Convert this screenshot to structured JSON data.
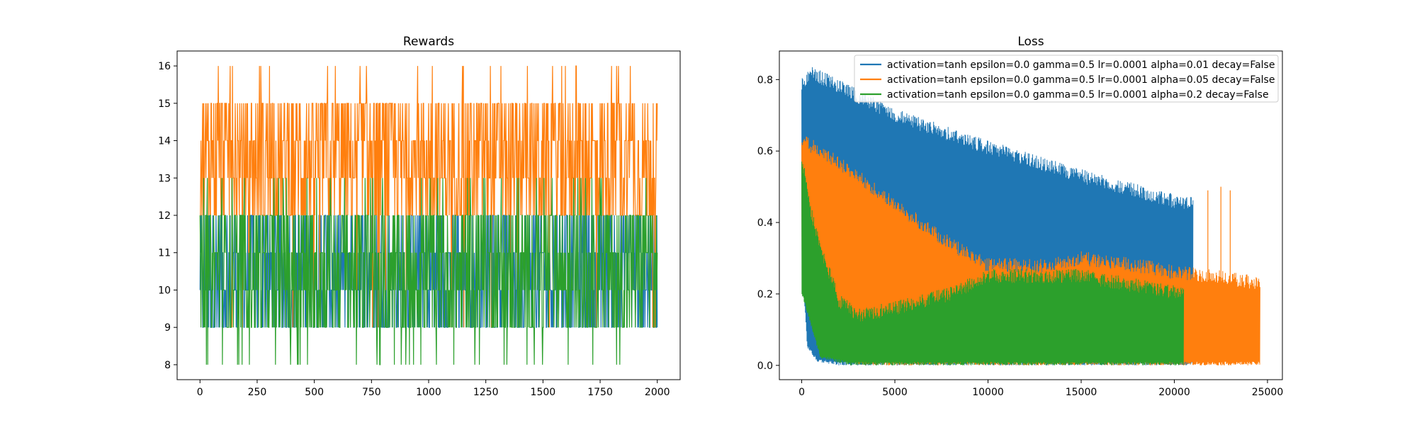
{
  "colors": {
    "blue": "#1f77b4",
    "orange": "#ff7f0e",
    "green": "#2ca02c"
  },
  "chart_data": [
    {
      "type": "line",
      "title": "Rewards",
      "xlabel": "",
      "ylabel": "",
      "xlim": [
        -100,
        2100
      ],
      "ylim": [
        7.6,
        16.4
      ],
      "xticks": [
        0,
        250,
        500,
        750,
        1000,
        1250,
        1500,
        1750,
        2000
      ],
      "xtick_labels": [
        "0",
        "250",
        "500",
        "750",
        "1000",
        "1250",
        "1500",
        "1750",
        "2000"
      ],
      "yticks": [
        8,
        9,
        10,
        11,
        12,
        13,
        14,
        15,
        16
      ],
      "ytick_labels": [
        "8",
        "9",
        "10",
        "11",
        "12",
        "13",
        "14",
        "15",
        "16"
      ],
      "grid": false,
      "series": [
        {
          "color": "#1f77b4",
          "x_range": [
            0,
            2000
          ],
          "min": 9,
          "max": 12,
          "typical_low": 9,
          "typical_high": 12
        },
        {
          "color": "#ff7f0e",
          "x_range": [
            0,
            2000
          ],
          "min": 9,
          "max": 16,
          "typical_low": 12,
          "typical_high": 15
        },
        {
          "color": "#2ca02c",
          "x_range": [
            0,
            2000
          ],
          "min": 8,
          "max": 13,
          "typical_low": 9,
          "typical_high": 12
        }
      ]
    },
    {
      "type": "line",
      "title": "Loss",
      "xlabel": "",
      "ylabel": "",
      "xlim": [
        -1200,
        25800
      ],
      "ylim": [
        -0.04,
        0.88
      ],
      "xticks": [
        0,
        5000,
        10000,
        15000,
        20000,
        25000
      ],
      "xtick_labels": [
        "0",
        "5000",
        "10000",
        "15000",
        "20000",
        "25000"
      ],
      "yticks": [
        0.0,
        0.2,
        0.4,
        0.6,
        0.8
      ],
      "ytick_labels": [
        "0.0",
        "0.2",
        "0.4",
        "0.6",
        "0.8"
      ],
      "grid": false,
      "legend_position": "top-right",
      "series": [
        {
          "name": "activation=tanh epsilon=0.0 gamma=0.5 lr=0.0001 alpha=0.01 decay=False",
          "color": "#1f77b4",
          "x_end": 21000,
          "upper_envelope": [
            [
              0,
              0.81
            ],
            [
              500,
              0.84
            ],
            [
              2000,
              0.8
            ],
            [
              5000,
              0.72
            ],
            [
              10000,
              0.63
            ],
            [
              15000,
              0.55
            ],
            [
              20000,
              0.48
            ],
            [
              21000,
              0.47
            ]
          ],
          "lower_envelope": [
            [
              0,
              0.3
            ],
            [
              300,
              0.05
            ],
            [
              800,
              0.01
            ],
            [
              2000,
              0.0
            ],
            [
              21000,
              0.0
            ]
          ]
        },
        {
          "name": "activation=tanh epsilon=0.0 gamma=0.5 lr=0.0001 alpha=0.05 decay=False",
          "color": "#ff7f0e",
          "x_end": 24600,
          "upper_envelope": [
            [
              0,
              0.65
            ],
            [
              1000,
              0.62
            ],
            [
              3000,
              0.55
            ],
            [
              5000,
              0.47
            ],
            [
              8000,
              0.36
            ],
            [
              10000,
              0.3
            ],
            [
              13000,
              0.3
            ],
            [
              15000,
              0.32
            ],
            [
              18000,
              0.3
            ],
            [
              20000,
              0.28
            ],
            [
              22000,
              0.27
            ],
            [
              24600,
              0.25
            ]
          ],
          "lower_envelope": [
            [
              0,
              0.3
            ],
            [
              1000,
              0.15
            ],
            [
              2000,
              0.05
            ],
            [
              3000,
              0.0
            ],
            [
              24600,
              0.0
            ]
          ],
          "spikes": [
            [
              21800,
              0.49
            ],
            [
              22500,
              0.5
            ],
            [
              23000,
              0.49
            ]
          ]
        },
        {
          "name": "activation=tanh epsilon=0.0 gamma=0.5 lr=0.0001 alpha=0.2 decay=False",
          "color": "#2ca02c",
          "x_end": 20500,
          "upper_envelope": [
            [
              0,
              0.6
            ],
            [
              500,
              0.45
            ],
            [
              1000,
              0.35
            ],
            [
              2000,
              0.2
            ],
            [
              3000,
              0.16
            ],
            [
              5000,
              0.18
            ],
            [
              8000,
              0.22
            ],
            [
              10000,
              0.27
            ],
            [
              15000,
              0.27
            ],
            [
              20500,
              0.22
            ]
          ],
          "lower_envelope": [
            [
              0,
              0.2
            ],
            [
              1000,
              0.02
            ],
            [
              2500,
              0.0
            ],
            [
              20500,
              0.0
            ]
          ]
        }
      ]
    }
  ]
}
